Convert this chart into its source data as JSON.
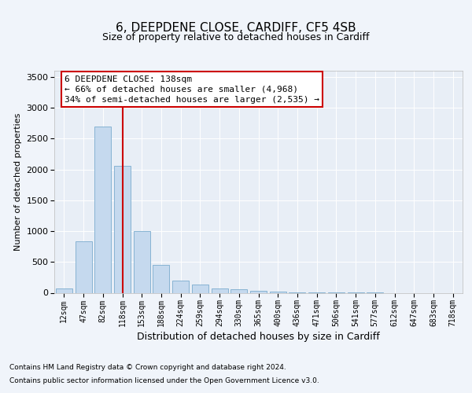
{
  "title1": "6, DEEPDENE CLOSE, CARDIFF, CF5 4SB",
  "title2": "Size of property relative to detached houses in Cardiff",
  "xlabel": "Distribution of detached houses by size in Cardiff",
  "ylabel": "Number of detached properties",
  "categories": [
    "12sqm",
    "47sqm",
    "82sqm",
    "118sqm",
    "153sqm",
    "188sqm",
    "224sqm",
    "259sqm",
    "294sqm",
    "330sqm",
    "365sqm",
    "400sqm",
    "436sqm",
    "471sqm",
    "506sqm",
    "541sqm",
    "577sqm",
    "612sqm",
    "647sqm",
    "683sqm",
    "718sqm"
  ],
  "values": [
    75,
    840,
    2700,
    2060,
    1000,
    450,
    200,
    130,
    75,
    55,
    30,
    18,
    8,
    4,
    2,
    2,
    1,
    0,
    0,
    0,
    0
  ],
  "bar_color": "#c5d9ee",
  "bar_edge_color": "#7aacce",
  "vline_pos": 3.0,
  "vline_color": "#cc0000",
  "annotation_text": "6 DEEPDENE CLOSE: 138sqm\n← 66% of detached houses are smaller (4,968)\n34% of semi-detached houses are larger (2,535) →",
  "annotation_box_facecolor": "#ffffff",
  "annotation_box_edgecolor": "#cc0000",
  "footer1": "Contains HM Land Registry data © Crown copyright and database right 2024.",
  "footer2": "Contains public sector information licensed under the Open Government Licence v3.0.",
  "ylim": [
    0,
    3600
  ],
  "yticks": [
    0,
    500,
    1000,
    1500,
    2000,
    2500,
    3000,
    3500
  ],
  "fig_bg": "#f0f4fa",
  "axes_bg": "#e8eef6",
  "grid_color": "#ffffff",
  "title1_fontsize": 11,
  "title2_fontsize": 9,
  "annot_fontsize": 8,
  "tick_fontsize": 7,
  "ytick_fontsize": 8,
  "ylabel_fontsize": 8,
  "xlabel_fontsize": 9,
  "footer_fontsize": 6.5
}
